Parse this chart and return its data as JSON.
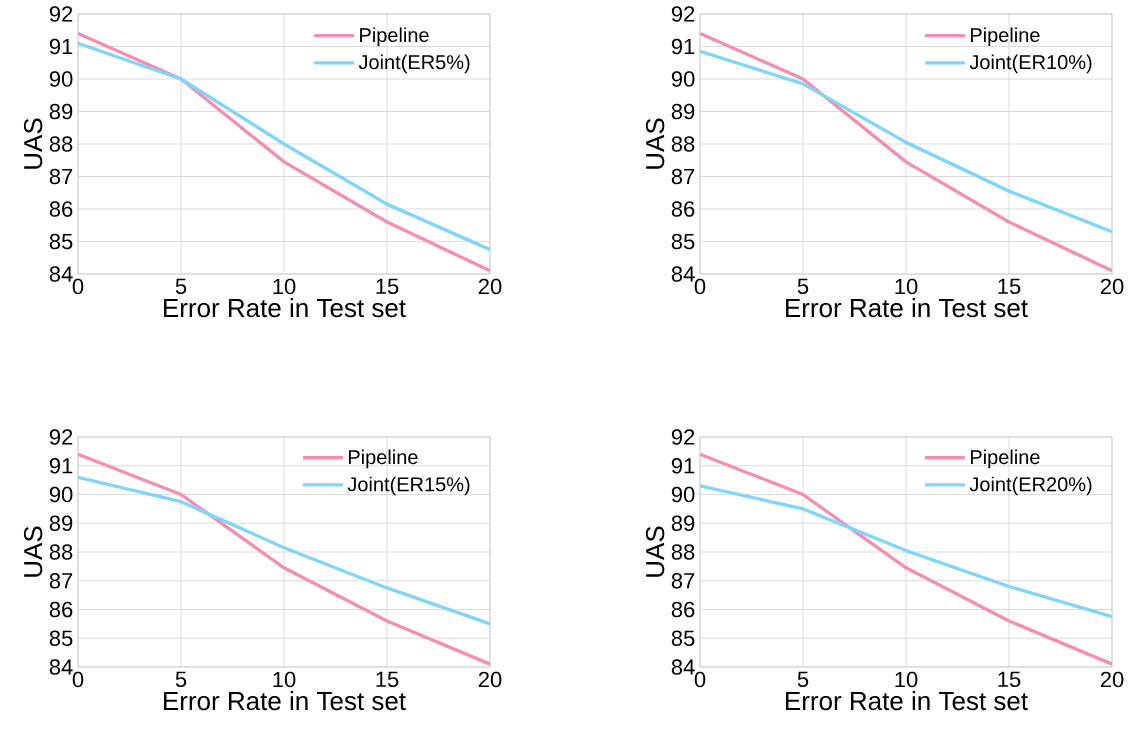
{
  "chart_data": [
    {
      "type": "line",
      "xlabel": "Error Rate in Test set",
      "ylabel": "UAS",
      "x": [
        0,
        5,
        10,
        15,
        20
      ],
      "xlim": [
        0,
        20
      ],
      "ylim": [
        84,
        92
      ],
      "xticks": [
        0,
        5,
        10,
        15,
        20
      ],
      "yticks": [
        84,
        85,
        86,
        87,
        88,
        89,
        90,
        91,
        92
      ],
      "grid": true,
      "legend": "top right",
      "series": [
        {
          "name": "Pipeline",
          "color": "#f48fb1",
          "values": [
            91.4,
            90.0,
            87.45,
            85.6,
            84.1
          ]
        },
        {
          "name": "Joint(ER5%)",
          "color": "#81d4fa",
          "values": [
            91.1,
            90.0,
            88.0,
            86.15,
            84.75
          ]
        }
      ]
    },
    {
      "type": "line",
      "xlabel": "Error Rate in Test set",
      "ylabel": "UAS",
      "x": [
        0,
        5,
        10,
        15,
        20
      ],
      "xlim": [
        0,
        20
      ],
      "ylim": [
        84,
        92
      ],
      "xticks": [
        0,
        5,
        10,
        15,
        20
      ],
      "yticks": [
        84,
        85,
        86,
        87,
        88,
        89,
        90,
        91,
        92
      ],
      "grid": true,
      "legend": "top right",
      "series": [
        {
          "name": "Pipeline",
          "color": "#f48fb1",
          "values": [
            91.4,
            90.0,
            87.45,
            85.6,
            84.1
          ]
        },
        {
          "name": "Joint(ER10%)",
          "color": "#81d4fa",
          "values": [
            90.85,
            89.85,
            88.05,
            86.55,
            85.3
          ]
        }
      ]
    },
    {
      "type": "line",
      "xlabel": "Error Rate in Test set",
      "ylabel": "UAS",
      "x": [
        0,
        5,
        10,
        15,
        20
      ],
      "xlim": [
        0,
        20
      ],
      "ylim": [
        84,
        92
      ],
      "xticks": [
        0,
        5,
        10,
        15,
        20
      ],
      "yticks": [
        84,
        85,
        86,
        87,
        88,
        89,
        90,
        91,
        92
      ],
      "grid": true,
      "legend": "top right",
      "series": [
        {
          "name": "Pipeline",
          "color": "#f48fb1",
          "values": [
            91.4,
            90.0,
            87.45,
            85.6,
            84.1
          ]
        },
        {
          "name": "Joint(ER15%)",
          "color": "#81d4fa",
          "values": [
            90.6,
            89.75,
            88.15,
            86.75,
            85.5
          ]
        }
      ]
    },
    {
      "type": "line",
      "xlabel": "Error Rate in Test set",
      "ylabel": "UAS",
      "x": [
        0,
        5,
        10,
        15,
        20
      ],
      "xlim": [
        0,
        20
      ],
      "ylim": [
        84,
        92
      ],
      "xticks": [
        0,
        5,
        10,
        15,
        20
      ],
      "yticks": [
        84,
        85,
        86,
        87,
        88,
        89,
        90,
        91,
        92
      ],
      "grid": true,
      "legend": "top right",
      "series": [
        {
          "name": "Pipeline",
          "color": "#f48fb1",
          "values": [
            91.4,
            90.0,
            87.45,
            85.6,
            84.1
          ]
        },
        {
          "name": "Joint(ER20%)",
          "color": "#81d4fa",
          "values": [
            90.3,
            89.5,
            88.05,
            86.8,
            85.75
          ]
        }
      ]
    }
  ]
}
